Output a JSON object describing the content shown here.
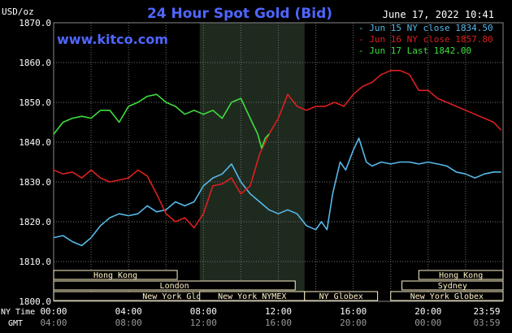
{
  "header": {
    "unit_label": "USD/oz",
    "title": "24 Hour Spot Gold (Bid)",
    "timestamp": "June 17, 2022 10:41",
    "watermark": "www.kitco.com"
  },
  "colors": {
    "background": "#000000",
    "grid": "#6f6f6f",
    "axis_text": "#ffffff",
    "title": "#4f66ff",
    "highlight_band": "#1f2a1f",
    "session_bar": "#fff3c8"
  },
  "chart_data": {
    "type": "line",
    "title": "24 Hour Spot Gold (Bid)",
    "ylabel": "USD/oz",
    "xlabel": "",
    "ylim": [
      1800,
      1870
    ],
    "xlim": [
      0,
      24
    ],
    "yticks": [
      {
        "v": 1870,
        "label": "1870.0"
      },
      {
        "v": 1860,
        "label": "1860.0"
      },
      {
        "v": 1850,
        "label": "1850.0"
      },
      {
        "v": 1840,
        "label": "1840.0"
      },
      {
        "v": 1830,
        "label": "1830.0"
      },
      {
        "v": 1820,
        "label": "1820.0"
      },
      {
        "v": 1810,
        "label": "1810.0"
      },
      {
        "v": 1800,
        "label": "1800.0"
      }
    ],
    "xticks_ny": [
      {
        "h": 0,
        "label": "00:00"
      },
      {
        "h": 4,
        "label": "04:00"
      },
      {
        "h": 8,
        "label": "08:00"
      },
      {
        "h": 12,
        "label": "12:00"
      },
      {
        "h": 16,
        "label": "16:00"
      },
      {
        "h": 20,
        "label": "20:00"
      },
      {
        "h": 24,
        "label": "23:59"
      }
    ],
    "xticks_gmt": [
      {
        "h": 0,
        "label": "04:00"
      },
      {
        "h": 4,
        "label": "08:00"
      },
      {
        "h": 8,
        "label": "12:00"
      },
      {
        "h": 12,
        "label": "16:00"
      },
      {
        "h": 16,
        "label": "20:00"
      },
      {
        "h": 20,
        "label": "00:00"
      },
      {
        "h": 24,
        "label": "03:59"
      }
    ],
    "axis_row_labels": {
      "ny": "NY Time",
      "gmt": "GMT"
    },
    "highlight_range": [
      7.8,
      13.4
    ],
    "series": [
      {
        "name": "Jun 15 NY close 1834.50",
        "color": "#56b9e9",
        "points": [
          [
            0,
            1816
          ],
          [
            0.5,
            1816.5
          ],
          [
            1,
            1815
          ],
          [
            1.5,
            1814
          ],
          [
            2,
            1816
          ],
          [
            2.5,
            1819
          ],
          [
            3,
            1821
          ],
          [
            3.5,
            1822
          ],
          [
            4,
            1821.5
          ],
          [
            4.5,
            1822
          ],
          [
            5,
            1824
          ],
          [
            5.5,
            1822.5
          ],
          [
            6,
            1823
          ],
          [
            6.5,
            1825
          ],
          [
            7,
            1824
          ],
          [
            7.5,
            1825
          ],
          [
            8,
            1829
          ],
          [
            8.5,
            1831
          ],
          [
            9,
            1832
          ],
          [
            9.5,
            1834.5
          ],
          [
            10,
            1830
          ],
          [
            10.5,
            1827
          ],
          [
            11,
            1825
          ],
          [
            11.5,
            1823
          ],
          [
            12,
            1822
          ],
          [
            12.5,
            1823
          ],
          [
            13,
            1822
          ],
          [
            13.5,
            1819
          ],
          [
            14,
            1818
          ],
          [
            14.3,
            1820
          ],
          [
            14.6,
            1818
          ],
          [
            14.9,
            1827
          ],
          [
            15.3,
            1835
          ],
          [
            15.6,
            1833
          ],
          [
            16,
            1838
          ],
          [
            16.3,
            1841
          ],
          [
            16.7,
            1835
          ],
          [
            17,
            1834
          ],
          [
            17.5,
            1835
          ],
          [
            18,
            1834.5
          ],
          [
            18.5,
            1835
          ],
          [
            19,
            1835
          ],
          [
            19.5,
            1834.5
          ],
          [
            20,
            1835
          ],
          [
            20.5,
            1834.5
          ],
          [
            21,
            1834
          ],
          [
            21.5,
            1832.5
          ],
          [
            22,
            1832
          ],
          [
            22.5,
            1831
          ],
          [
            23,
            1832
          ],
          [
            23.5,
            1832.5
          ],
          [
            23.9,
            1832.5
          ]
        ]
      },
      {
        "name": "Jun 16 NY close 1857.80",
        "color": "#dd1f1f",
        "points": [
          [
            0,
            1833
          ],
          [
            0.5,
            1832
          ],
          [
            1,
            1832.5
          ],
          [
            1.5,
            1831
          ],
          [
            2,
            1833
          ],
          [
            2.5,
            1831
          ],
          [
            3,
            1830
          ],
          [
            3.5,
            1830.5
          ],
          [
            4,
            1831
          ],
          [
            4.5,
            1833
          ],
          [
            5,
            1831.5
          ],
          [
            5.5,
            1827
          ],
          [
            6,
            1822
          ],
          [
            6.5,
            1820
          ],
          [
            7,
            1821
          ],
          [
            7.5,
            1818.5
          ],
          [
            8,
            1822
          ],
          [
            8.5,
            1829
          ],
          [
            9,
            1829.5
          ],
          [
            9.5,
            1831
          ],
          [
            10,
            1827
          ],
          [
            10.5,
            1829
          ],
          [
            11,
            1837
          ],
          [
            11.5,
            1842
          ],
          [
            12,
            1846
          ],
          [
            12.5,
            1852
          ],
          [
            13,
            1849
          ],
          [
            13.5,
            1848
          ],
          [
            14,
            1849
          ],
          [
            14.5,
            1849
          ],
          [
            15,
            1850
          ],
          [
            15.5,
            1849
          ],
          [
            16,
            1852
          ],
          [
            16.5,
            1854
          ],
          [
            17,
            1855
          ],
          [
            17.5,
            1857
          ],
          [
            18,
            1858
          ],
          [
            18.5,
            1858
          ],
          [
            19,
            1857
          ],
          [
            19.5,
            1853
          ],
          [
            20,
            1853
          ],
          [
            20.5,
            1851
          ],
          [
            21,
            1850
          ],
          [
            21.5,
            1849
          ],
          [
            22,
            1848
          ],
          [
            22.5,
            1847
          ],
          [
            23,
            1846
          ],
          [
            23.5,
            1845
          ],
          [
            23.9,
            1843
          ]
        ]
      },
      {
        "name": "Jun 17 Last 1842.00",
        "color": "#3ddf3d",
        "points": [
          [
            0,
            1842
          ],
          [
            0.5,
            1845
          ],
          [
            1,
            1846
          ],
          [
            1.5,
            1846.5
          ],
          [
            2,
            1846
          ],
          [
            2.5,
            1848
          ],
          [
            3,
            1848
          ],
          [
            3.5,
            1845
          ],
          [
            4,
            1849
          ],
          [
            4.5,
            1850
          ],
          [
            5,
            1851.5
          ],
          [
            5.5,
            1852
          ],
          [
            6,
            1850
          ],
          [
            6.5,
            1849
          ],
          [
            7,
            1847
          ],
          [
            7.5,
            1848
          ],
          [
            8,
            1847
          ],
          [
            8.5,
            1848
          ],
          [
            9,
            1846
          ],
          [
            9.5,
            1850
          ],
          [
            10,
            1851
          ],
          [
            10.3,
            1848
          ],
          [
            10.6,
            1845
          ],
          [
            10.9,
            1842
          ],
          [
            11.1,
            1838.5
          ],
          [
            11.3,
            1841
          ],
          [
            11.5,
            1842
          ]
        ]
      }
    ],
    "legend": {
      "placement": "top-right",
      "entries": [
        {
          "text": "Jun 15 NY close 1834.50",
          "color": "#56b9e9"
        },
        {
          "text": "Jun 16 NY close 1857.80",
          "color": "#dd1f1f"
        },
        {
          "text": "Jun 17 Last 1842.00",
          "color": "#3ddf3d"
        }
      ]
    },
    "sessions": [
      {
        "label": "Hong Kong",
        "start": 0,
        "end": 6.6,
        "row": 0
      },
      {
        "label": "Hong Kong",
        "start": 19.5,
        "end": 24,
        "row": 0
      },
      {
        "label": "London",
        "start": 0,
        "end": 12.9,
        "row": 1
      },
      {
        "label": "Sydney",
        "start": 18.6,
        "end": 24,
        "row": 1
      },
      {
        "label": "New York Globex",
        "start": 0,
        "end": 13.4,
        "row": 2
      },
      {
        "label": "New York NYMEX",
        "start": 7.8,
        "end": 13.4,
        "row": 2
      },
      {
        "label": "NY Globex",
        "start": 13.4,
        "end": 17.3,
        "row": 2
      },
      {
        "label": "New York Globex",
        "start": 18.0,
        "end": 24,
        "row": 2
      }
    ]
  }
}
